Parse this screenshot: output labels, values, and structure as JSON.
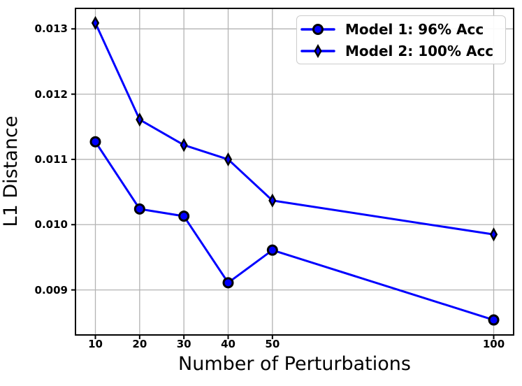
{
  "chart_data": {
    "type": "line",
    "title": "",
    "xlabel": "Number of Perturbations",
    "ylabel": "L1 Distance",
    "x": [
      10,
      20,
      30,
      40,
      50,
      100
    ],
    "series": [
      {
        "name": "Model 1: 96% Acc",
        "marker": "circle",
        "color": "#0000ff",
        "values": [
          0.01127,
          0.01024,
          0.01013,
          0.00911,
          0.00961,
          0.00854
        ]
      },
      {
        "name": "Model 2: 100% Acc",
        "marker": "diamond",
        "color": "#0000ff",
        "values": [
          0.01309,
          0.01161,
          0.01122,
          0.011,
          0.01037,
          0.00985
        ]
      }
    ],
    "x_ticks": [
      10,
      20,
      30,
      40,
      50,
      100
    ],
    "x_tick_labels": [
      "10",
      "20",
      "30",
      "40",
      "50",
      "100"
    ],
    "y_ticks": [
      0.009,
      0.01,
      0.011,
      0.012,
      0.013
    ],
    "y_tick_labels": [
      "0.009",
      "0.010",
      "0.011",
      "0.012",
      "0.013"
    ],
    "xlim": [
      5.5,
      104.5
    ],
    "ylim": [
      0.00831,
      0.013314
    ],
    "grid": true,
    "legend_position": "upper right",
    "colors": {
      "line": "#0000ff",
      "marker_edge": "#000000",
      "grid": "#b3b3b3",
      "spine": "#000000",
      "legend_border": "#cccccc",
      "background": "#ffffff"
    }
  }
}
